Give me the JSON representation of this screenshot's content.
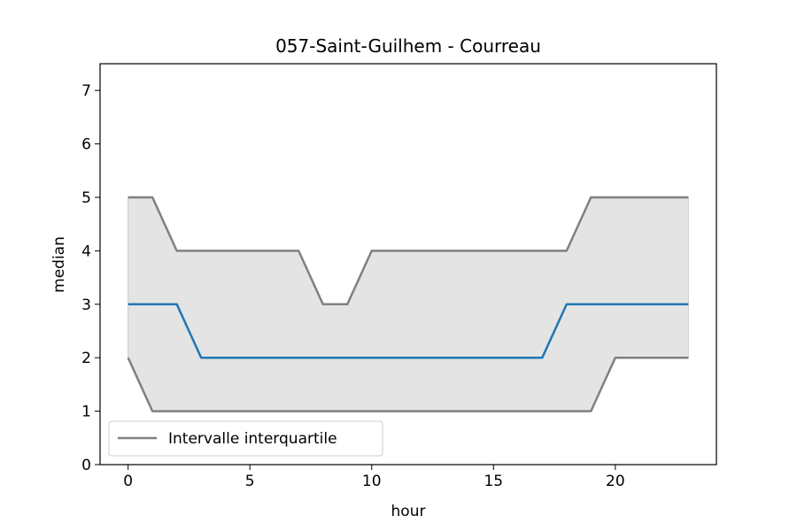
{
  "chart_data": {
    "type": "line",
    "title": "057-Saint-Guilhem - Courreau",
    "xlabel": "hour",
    "ylabel": "median",
    "x": [
      0,
      1,
      2,
      3,
      4,
      5,
      6,
      7,
      8,
      9,
      10,
      11,
      12,
      13,
      14,
      15,
      16,
      17,
      18,
      19,
      20,
      21,
      22,
      23
    ],
    "xlim": [
      -1.15,
      24.15
    ],
    "ylim": [
      0,
      7.5
    ],
    "xticks": [
      0,
      5,
      10,
      15,
      20
    ],
    "yticks": [
      0,
      1,
      2,
      3,
      4,
      5,
      6,
      7
    ],
    "grid": false,
    "series": [
      {
        "role": "median",
        "color": "#1f77b4",
        "values": [
          3,
          3,
          3,
          2,
          2,
          2,
          2,
          2,
          2,
          2,
          2,
          2,
          2,
          2,
          2,
          2,
          2,
          2,
          3,
          3,
          3,
          3,
          3,
          3
        ]
      },
      {
        "role": "q75",
        "color": "#808080",
        "values": [
          5,
          5,
          4,
          4,
          4,
          4,
          4,
          4,
          3,
          3,
          4,
          4,
          4,
          4,
          4,
          4,
          4,
          4,
          4,
          5,
          5,
          5,
          5,
          5
        ]
      },
      {
        "role": "q25",
        "color": "#808080",
        "values": [
          2,
          1,
          1,
          1,
          1,
          1,
          1,
          1,
          1,
          1,
          1,
          1,
          1,
          1,
          1,
          1,
          1,
          1,
          1,
          1,
          2,
          2,
          2,
          2
        ]
      }
    ],
    "band_fill": "#e4e4e4",
    "legend": {
      "position": "lower-left",
      "entries": [
        {
          "label": "Intervalle interquartile",
          "color": "#808080"
        }
      ]
    }
  }
}
